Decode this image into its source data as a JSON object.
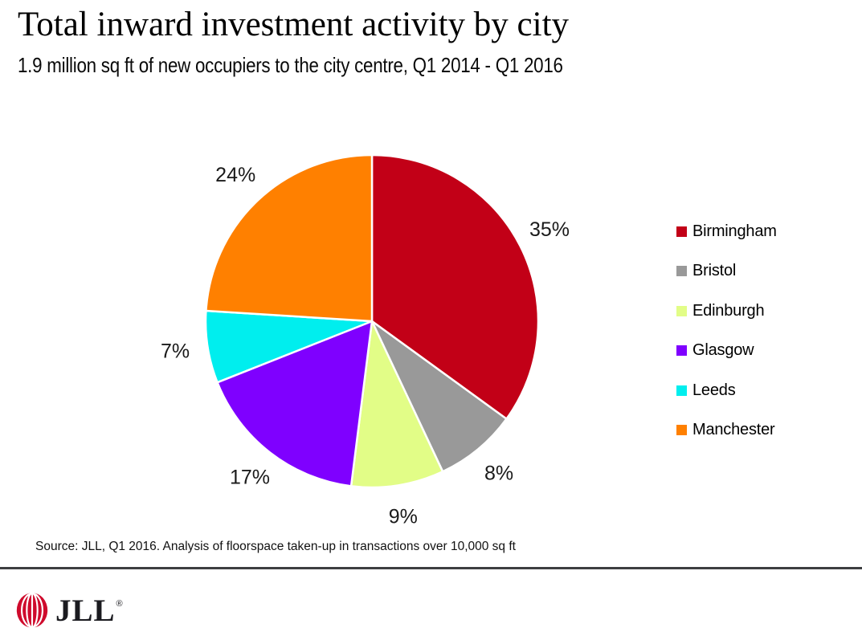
{
  "header": {
    "title": "Total inward investment activity by city",
    "subtitle": "1.9 million sq ft of new occupiers to the city centre, Q1 2014 - Q1 2016"
  },
  "chart_data": {
    "type": "pie",
    "title": "Total inward investment activity by city",
    "categories": [
      "Birmingham",
      "Bristol",
      "Edinburgh",
      "Glasgow",
      "Leeds",
      "Manchester"
    ],
    "values": [
      35,
      8,
      9,
      17,
      7,
      24
    ],
    "labels": [
      "35%",
      "8%",
      "9%",
      "17%",
      "7%",
      "24%"
    ],
    "unit": "%",
    "colors": [
      "#c20017",
      "#999999",
      "#e2fd87",
      "#7f00ff",
      "#00eeee",
      "#ff8000"
    ],
    "start_angle_deg": 0,
    "direction": "clockwise",
    "slice_border_color": "#ffffff",
    "legend_position": "right",
    "label_color": "#1a1a1a"
  },
  "footer": {
    "source": "Source: JLL, Q1 2016. Analysis of floorspace taken-up in transactions over 10,000 sq ft"
  },
  "logo": {
    "text": "JLL",
    "registered_mark": "®",
    "mark_color": "#cf0a2c"
  }
}
